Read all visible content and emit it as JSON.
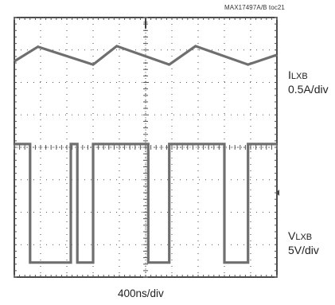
{
  "figure_id": "MAX17497A/B toc21",
  "chart_data": {
    "type": "line",
    "title": "",
    "time_scale": "400ns/div",
    "divisions": {
      "x": 10,
      "y": 8
    },
    "grid": true,
    "trigger_marker": "T",
    "series": [
      {
        "name": "ILXB",
        "scale": "0.5A/div",
        "label_main": "I",
        "label_sub": "LXB",
        "unit_label": "0.5A/div",
        "waveform": "triangular",
        "x_div": [
          0.0,
          0.9,
          3.0,
          3.9,
          5.9,
          6.9,
          8.9,
          10.0
        ],
        "y_div": [
          6.65,
          7.1,
          6.55,
          7.12,
          6.55,
          7.12,
          6.55,
          6.85
        ]
      },
      {
        "name": "VLXB",
        "scale": "5V/div",
        "label_main": "V",
        "label_sub": "LXB",
        "unit_label": "5V/div",
        "waveform": "square",
        "x_div": [
          0.0,
          0.6,
          0.6,
          2.15,
          2.15,
          2.4,
          2.4,
          3.0,
          3.0,
          5.1,
          5.1,
          5.5,
          5.5,
          5.9,
          5.9,
          8.0,
          8.0,
          8.3,
          8.3,
          8.9,
          8.9,
          10.0
        ],
        "y_div": [
          4.1,
          4.1,
          0.45,
          0.45,
          4.1,
          4.1,
          0.45,
          0.45,
          4.1,
          4.1,
          0.45,
          0.45,
          0.45,
          0.45,
          4.1,
          4.1,
          0.45,
          0.45,
          0.45,
          0.45,
          4.1,
          4.1
        ]
      }
    ],
    "colors": {
      "trace": "#6f6f6f",
      "grid": "#555555",
      "frame": "#111111"
    }
  }
}
